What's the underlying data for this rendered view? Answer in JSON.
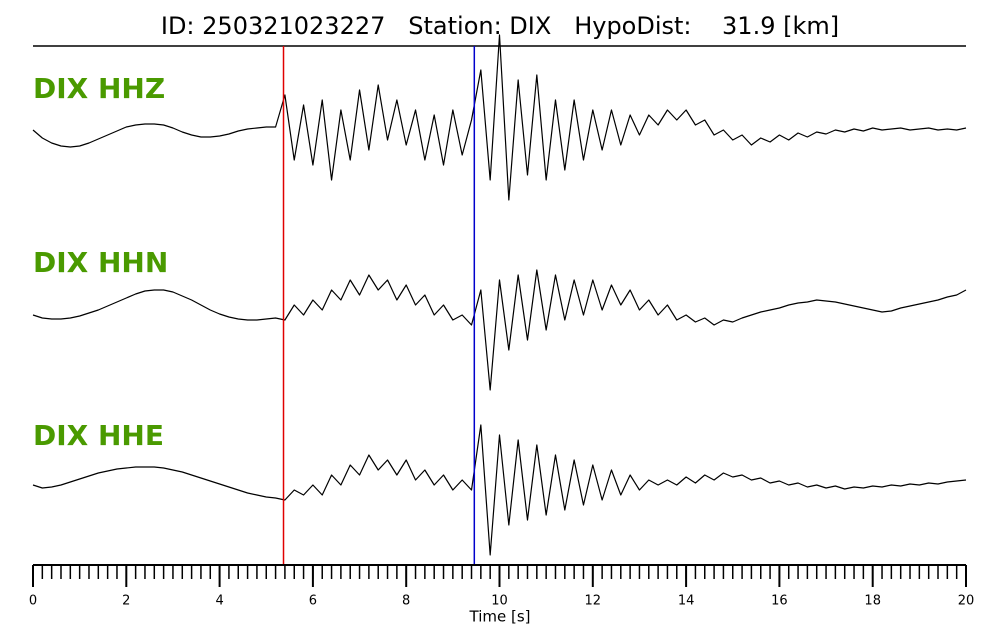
{
  "chart_data": {
    "type": "seismogram",
    "title": "ID: 250321023227   Station: DIX   HypoDist:    31.9 [km]",
    "xlabel": "Time [s]",
    "xlim": [
      0,
      20
    ],
    "xticks": [
      0,
      2,
      4,
      6,
      8,
      10,
      12,
      14,
      16,
      18,
      20
    ],
    "xminorticks": [
      0,
      0.2,
      0.4,
      0.6,
      0.8,
      1,
      1.2,
      1.4,
      1.6,
      1.8,
      2,
      2.2,
      2.4,
      2.6,
      2.8,
      3,
      3.2,
      3.4,
      3.6,
      3.8,
      4,
      4.2,
      4.4,
      4.6,
      4.8,
      5,
      5.2,
      5.4,
      5.6,
      5.8,
      6,
      6.2,
      6.4,
      6.6,
      6.8,
      7,
      7.2,
      7.4,
      7.6,
      7.8,
      8,
      8.2,
      8.4,
      8.6,
      8.8,
      9,
      9.2,
      9.4,
      9.6,
      9.8,
      10,
      10.2,
      10.4,
      10.6,
      10.8,
      11,
      11.2,
      11.4,
      11.6,
      11.8,
      12,
      12.2,
      12.4,
      12.6,
      12.8,
      13,
      13.2,
      13.4,
      13.6,
      13.8,
      14,
      14.2,
      14.4,
      14.6,
      14.8,
      15,
      15.2,
      15.4,
      15.6,
      15.8,
      16,
      16.2,
      16.4,
      16.6,
      16.8,
      17,
      17.2,
      17.4,
      17.6,
      17.8,
      18,
      18.2,
      18.4,
      18.6,
      18.8,
      19,
      19.2,
      19.4,
      19.6,
      19.8,
      20
    ],
    "x": [
      0,
      0.2,
      0.4,
      0.6,
      0.8,
      1,
      1.2,
      1.4,
      1.6,
      1.8,
      2,
      2.2,
      2.4,
      2.6,
      2.8,
      3,
      3.2,
      3.4,
      3.6,
      3.8,
      4,
      4.2,
      4.4,
      4.6,
      4.8,
      5,
      5.2,
      5.4,
      5.6,
      5.8,
      6,
      6.2,
      6.4,
      6.6,
      6.8,
      7,
      7.2,
      7.4,
      7.6,
      7.8,
      8,
      8.2,
      8.4,
      8.6,
      8.8,
      9,
      9.2,
      9.4,
      9.6,
      9.8,
      10,
      10.2,
      10.4,
      10.6,
      10.8,
      11,
      11.2,
      11.4,
      11.6,
      11.8,
      12,
      12.2,
      12.4,
      12.6,
      12.8,
      13,
      13.2,
      13.4,
      13.6,
      13.8,
      14,
      14.2,
      14.4,
      14.6,
      14.8,
      15,
      15.2,
      15.4,
      15.6,
      15.8,
      16,
      16.2,
      16.4,
      16.6,
      16.8,
      17,
      17.2,
      17.4,
      17.6,
      17.8,
      18,
      18.2,
      18.4,
      18.6,
      18.8,
      19,
      19.2,
      19.4,
      19.6,
      19.8,
      20
    ],
    "label_color": "#4a9a00",
    "series": [
      {
        "name": "DIX HHZ",
        "color": "#000000",
        "values": [
          0,
          -0.08,
          -0.13,
          -0.16,
          -0.17,
          -0.16,
          -0.13,
          -0.09,
          -0.05,
          -0.01,
          0.03,
          0.05,
          0.06,
          0.06,
          0.05,
          0.02,
          -0.02,
          -0.05,
          -0.07,
          -0.07,
          -0.06,
          -0.04,
          -0.01,
          0.01,
          0.02,
          0.03,
          0.03,
          0.35,
          -0.3,
          0.25,
          -0.35,
          0.3,
          -0.5,
          0.2,
          -0.3,
          0.4,
          -0.2,
          0.45,
          -0.1,
          0.3,
          -0.15,
          0.2,
          -0.3,
          0.15,
          -0.35,
          0.2,
          -0.25,
          0.1,
          0.6,
          -0.5,
          0.95,
          -0.7,
          0.5,
          -0.45,
          0.55,
          -0.5,
          0.3,
          -0.4,
          0.3,
          -0.3,
          0.2,
          -0.2,
          0.2,
          -0.15,
          0.15,
          -0.05,
          0.15,
          0.05,
          0.2,
          0.1,
          0.2,
          0.05,
          0.1,
          -0.05,
          0,
          -0.1,
          -0.05,
          -0.15,
          -0.08,
          -0.12,
          -0.05,
          -0.1,
          -0.03,
          -0.07,
          -0.02,
          -0.04,
          0,
          -0.02,
          0.01,
          -0.01,
          0.02,
          0,
          0.01,
          0.02,
          0,
          0.01,
          0.02,
          0,
          0.01,
          0,
          0.02
        ]
      },
      {
        "name": "DIX HHN",
        "color": "#000000",
        "values": [
          -0.05,
          -0.08,
          -0.09,
          -0.09,
          -0.08,
          -0.06,
          -0.03,
          0,
          0.04,
          0.08,
          0.12,
          0.16,
          0.19,
          0.2,
          0.2,
          0.18,
          0.14,
          0.1,
          0.05,
          0,
          -0.04,
          -0.07,
          -0.09,
          -0.1,
          -0.1,
          -0.09,
          -0.08,
          -0.1,
          0.05,
          -0.05,
          0.1,
          0,
          0.2,
          0.1,
          0.3,
          0.15,
          0.35,
          0.2,
          0.3,
          0.1,
          0.25,
          0.05,
          0.15,
          -0.05,
          0.05,
          -0.1,
          -0.05,
          -0.15,
          0.2,
          -0.8,
          0.3,
          -0.4,
          0.35,
          -0.3,
          0.4,
          -0.2,
          0.35,
          -0.1,
          0.3,
          -0.05,
          0.3,
          0,
          0.25,
          0.05,
          0.2,
          0,
          0.1,
          -0.05,
          0.05,
          -0.1,
          -0.05,
          -0.12,
          -0.08,
          -0.15,
          -0.1,
          -0.12,
          -0.08,
          -0.05,
          -0.02,
          0,
          0.02,
          0.05,
          0.07,
          0.08,
          0.1,
          0.09,
          0.08,
          0.06,
          0.04,
          0.02,
          0,
          -0.02,
          -0.01,
          0.02,
          0.04,
          0.06,
          0.08,
          0.1,
          0.13,
          0.15,
          0.2
        ]
      },
      {
        "name": "DIX HHE",
        "color": "#000000",
        "values": [
          0,
          -0.03,
          -0.02,
          0,
          0.03,
          0.06,
          0.09,
          0.12,
          0.14,
          0.16,
          0.17,
          0.18,
          0.18,
          0.18,
          0.17,
          0.15,
          0.13,
          0.1,
          0.07,
          0.04,
          0.01,
          -0.02,
          -0.05,
          -0.08,
          -0.1,
          -0.12,
          -0.13,
          -0.15,
          -0.05,
          -0.1,
          0,
          -0.1,
          0.1,
          0,
          0.2,
          0.1,
          0.3,
          0.15,
          0.25,
          0.1,
          0.25,
          0.05,
          0.15,
          0,
          0.1,
          -0.05,
          0.05,
          -0.05,
          0.6,
          -0.7,
          0.5,
          -0.4,
          0.45,
          -0.35,
          0.4,
          -0.3,
          0.3,
          -0.25,
          0.25,
          -0.2,
          0.2,
          -0.15,
          0.15,
          -0.1,
          0.1,
          -0.05,
          0.05,
          0,
          0.05,
          0,
          0.08,
          0.02,
          0.1,
          0.05,
          0.12,
          0.08,
          0.1,
          0.05,
          0.07,
          0.02,
          0.04,
          0,
          0.02,
          -0.02,
          0,
          -0.03,
          -0.01,
          -0.04,
          -0.02,
          -0.03,
          -0.01,
          -0.02,
          0,
          -0.01,
          0.01,
          0,
          0.02,
          0.01,
          0.03,
          0.04,
          0.05
        ]
      }
    ],
    "picks": [
      {
        "x": 5.37,
        "color": "#e00000"
      },
      {
        "x": 9.46,
        "color": "#0000cc"
      }
    ]
  }
}
